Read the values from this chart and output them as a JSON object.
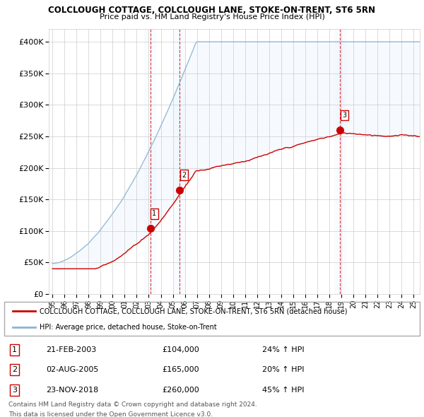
{
  "title": "COLCLOUGH COTTAGE, COLCLOUGH LANE, STOKE-ON-TRENT, ST6 5RN",
  "subtitle": "Price paid vs. HM Land Registry's House Price Index (HPI)",
  "ylim": [
    0,
    420000
  ],
  "yticks": [
    0,
    50000,
    100000,
    150000,
    200000,
    250000,
    300000,
    350000,
    400000
  ],
  "ytick_labels": [
    "£0",
    "£50K",
    "£100K",
    "£150K",
    "£200K",
    "£250K",
    "£300K",
    "£350K",
    "£400K"
  ],
  "xmin": 1995.0,
  "xmax": 2025.5,
  "xtick_years": [
    1995,
    1996,
    1997,
    1998,
    1999,
    2000,
    2001,
    2002,
    2003,
    2004,
    2005,
    2006,
    2007,
    2008,
    2009,
    2010,
    2011,
    2012,
    2013,
    2014,
    2015,
    2016,
    2017,
    2018,
    2019,
    2020,
    2021,
    2022,
    2023,
    2024,
    2025
  ],
  "sale_dates": [
    2003.13,
    2005.58,
    2018.9
  ],
  "sale_prices": [
    104000,
    165000,
    260000
  ],
  "sale_labels": [
    "1",
    "2",
    "3"
  ],
  "sale_info": [
    {
      "num": "1",
      "date": "21-FEB-2003",
      "price": "£104,000",
      "hpi": "24% ↑ HPI"
    },
    {
      "num": "2",
      "date": "02-AUG-2005",
      "price": "£165,000",
      "hpi": "20% ↑ HPI"
    },
    {
      "num": "3",
      "date": "23-NOV-2018",
      "price": "£260,000",
      "hpi": "45% ↑ HPI"
    }
  ],
  "legend_line1": "COLCLOUGH COTTAGE, COLCLOUGH LANE, STOKE-ON-TRENT, ST6 5RN (detached house)",
  "legend_line2": "HPI: Average price, detached house, Stoke-on-Trent",
  "footer1": "Contains HM Land Registry data © Crown copyright and database right 2024.",
  "footer2": "This data is licensed under the Open Government Licence v3.0.",
  "red_color": "#cc0000",
  "blue_color": "#8ab4d4",
  "shade_color": "#ddeeff",
  "grid_color": "#cccccc",
  "background_color": "#ffffff"
}
